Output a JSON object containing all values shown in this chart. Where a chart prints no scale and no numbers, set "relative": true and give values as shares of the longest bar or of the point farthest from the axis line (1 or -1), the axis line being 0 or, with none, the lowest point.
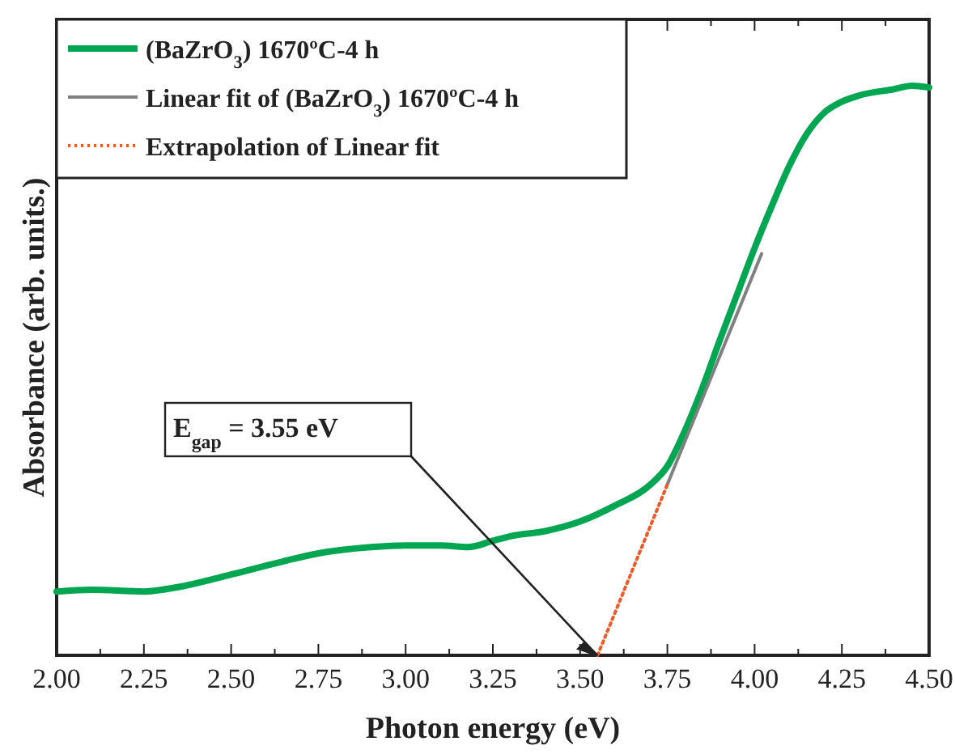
{
  "chart_data": {
    "type": "line",
    "relative": true,
    "xlabel": "Photon energy (eV)",
    "ylabel": "Absorbance (arb. units.)",
    "xlim": [
      2,
      4.5
    ],
    "xticks": [
      {
        "value": 2,
        "label": "2.00"
      },
      {
        "value": 2.125,
        "label": null
      },
      {
        "value": 2.25,
        "label": "2.25"
      },
      {
        "value": 2.375,
        "label": null
      },
      {
        "value": 2.5,
        "label": "2.50"
      },
      {
        "value": 2.625,
        "label": null
      },
      {
        "value": 2.75,
        "label": "2.75"
      },
      {
        "value": 2.875,
        "label": null
      },
      {
        "value": 3,
        "label": "3.00"
      },
      {
        "value": 3.125,
        "label": null
      },
      {
        "value": 3.25,
        "label": "3.25"
      },
      {
        "value": 3.375,
        "label": null
      },
      {
        "value": 3.5,
        "label": "3.50"
      },
      {
        "value": 3.625,
        "label": null
      },
      {
        "value": 3.75,
        "label": "3.75"
      },
      {
        "value": 3.875,
        "label": null
      },
      {
        "value": 4,
        "label": "4.00"
      },
      {
        "value": 4.125,
        "label": null
      },
      {
        "value": 4.25,
        "label": "4.25"
      },
      {
        "value": 4.375,
        "label": null
      },
      {
        "value": 4.5,
        "label": "4.50"
      }
    ],
    "grid": false,
    "legend": "top left",
    "series": [
      {
        "name": "(BaZrO$_{3}$) 1670ºC-4 h",
        "color": "#00a651",
        "line_style": "solid",
        "x": [
          2,
          2.1,
          2.25,
          2.35,
          2.5,
          2.65,
          2.75,
          2.9,
          3,
          3.1,
          3.18,
          3.25,
          3.3,
          3.4,
          3.5,
          3.6,
          3.7,
          3.75,
          3.8,
          3.85,
          3.9,
          3.95,
          4,
          4.05,
          4.1,
          4.15,
          4.2,
          4.25,
          4.3,
          4.4,
          4.45,
          4.5
        ],
        "values": [
          0.112,
          0.115,
          0.112,
          0.12,
          0.142,
          0.165,
          0.179,
          0.19,
          0.193,
          0.193,
          0.19,
          0.201,
          0.209,
          0.218,
          0.235,
          0.263,
          0.299,
          0.332,
          0.394,
          0.469,
          0.553,
          0.634,
          0.715,
          0.79,
          0.86,
          0.916,
          0.953,
          0.972,
          0.983,
          0.994,
          1,
          0.997
        ]
      },
      {
        "name": "Linear fit of (BaZrO$_{3}$) 1670ºC-4 h",
        "color": "#808080",
        "line_style": "solid",
        "x": [
          3.75,
          4.02
        ],
        "values": [
          0.3,
          0.705
        ]
      },
      {
        "name": "Extrapolation of Linear fit",
        "color": "#f05a28",
        "line_style": "dotted",
        "x": [
          3.55,
          3.75
        ],
        "values": [
          0,
          0.3
        ]
      }
    ],
    "annotations": [
      "E$_{gap}$ = 3.55 eV"
    ]
  }
}
